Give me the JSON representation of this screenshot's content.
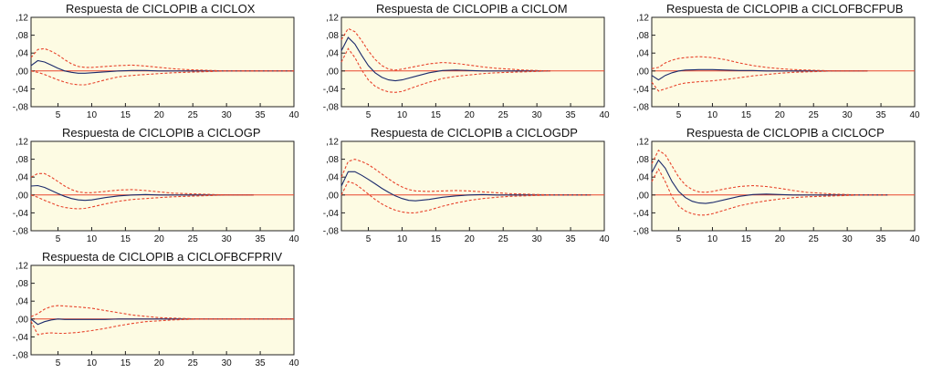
{
  "chart_data": [
    {
      "type": "line",
      "title": "Respuesta de CICLOPIB a CICLOX",
      "annotation": "1",
      "xlim": [
        1,
        40
      ],
      "ylim": [
        -0.08,
        0.12
      ],
      "xticks": [
        5,
        10,
        15,
        20,
        25,
        30,
        35,
        40
      ],
      "yticks": [
        -0.08,
        -0.04,
        0.0,
        0.04,
        0.08,
        0.12
      ],
      "ytick_labels": [
        "-,08",
        "-,04",
        ",00",
        ",04",
        ",08",
        ",12"
      ],
      "xtick_labels": [
        "5",
        "10",
        "15",
        "20",
        "25",
        "30",
        "35",
        "40"
      ],
      "x": [
        1,
        2,
        3,
        4,
        5,
        6,
        7,
        8,
        9,
        10,
        12,
        14,
        16,
        18,
        20,
        22,
        24,
        26,
        28,
        30,
        33,
        36,
        40
      ],
      "series": [
        {
          "role": "response",
          "values": [
            0.012,
            0.023,
            0.02,
            0.013,
            0.006,
            0.0,
            -0.003,
            -0.005,
            -0.005,
            -0.004,
            -0.002,
            0.0,
            0.001,
            0.001,
            0.0,
            0.0,
            0.0,
            0.0,
            0.0,
            0.0,
            0.0,
            0.0,
            0.0
          ]
        },
        {
          "role": "upper",
          "values": [
            0.03,
            0.048,
            0.05,
            0.044,
            0.036,
            0.025,
            0.016,
            0.01,
            0.008,
            0.008,
            0.01,
            0.012,
            0.013,
            0.011,
            0.008,
            0.005,
            0.003,
            0.002,
            0.001,
            0.0,
            0.0,
            0.0,
            0.0
          ]
        },
        {
          "role": "lower",
          "values": [
            0.0,
            -0.003,
            -0.008,
            -0.014,
            -0.02,
            -0.025,
            -0.029,
            -0.031,
            -0.031,
            -0.028,
            -0.02,
            -0.013,
            -0.01,
            -0.008,
            -0.006,
            -0.004,
            -0.003,
            -0.002,
            -0.001,
            0.0,
            0.0,
            0.0,
            0.0
          ]
        }
      ]
    },
    {
      "type": "line",
      "title": "Respuesta de CICLOPIB a CICLOM",
      "xlim": [
        1,
        40
      ],
      "ylim": [
        -0.08,
        0.12
      ],
      "xticks": [
        5,
        10,
        15,
        20,
        25,
        30,
        35,
        40
      ],
      "yticks": [
        -0.08,
        -0.04,
        0.0,
        0.04,
        0.08,
        0.12
      ],
      "ytick_labels": [
        "-,08",
        "-,04",
        ",00",
        ",04",
        ",08",
        ",12"
      ],
      "xtick_labels": [
        "5",
        "10",
        "15",
        "20",
        "25",
        "30",
        "35",
        "40"
      ],
      "x": [
        1,
        2,
        3,
        4,
        5,
        6,
        7,
        8,
        9,
        10,
        12,
        14,
        16,
        18,
        20,
        22,
        24,
        26,
        28,
        30,
        32
      ],
      "series": [
        {
          "role": "response",
          "values": [
            0.045,
            0.075,
            0.06,
            0.035,
            0.012,
            -0.004,
            -0.014,
            -0.02,
            -0.022,
            -0.02,
            -0.012,
            -0.004,
            0.001,
            0.002,
            0.001,
            0.0,
            0.0,
            0.0,
            0.0,
            0.0,
            0.0
          ]
        },
        {
          "role": "upper",
          "values": [
            0.07,
            0.095,
            0.088,
            0.068,
            0.045,
            0.026,
            0.012,
            0.004,
            0.002,
            0.004,
            0.01,
            0.016,
            0.019,
            0.017,
            0.013,
            0.009,
            0.006,
            0.004,
            0.002,
            0.001,
            0.0
          ]
        },
        {
          "role": "lower",
          "values": [
            0.02,
            0.05,
            0.03,
            0.002,
            -0.02,
            -0.034,
            -0.042,
            -0.047,
            -0.048,
            -0.046,
            -0.035,
            -0.025,
            -0.017,
            -0.012,
            -0.009,
            -0.006,
            -0.004,
            -0.003,
            -0.002,
            -0.001,
            0.0
          ]
        }
      ]
    },
    {
      "type": "line",
      "title": "Respuesta de CICLOPIB a CICLOFBCFPUB",
      "xlim": [
        1,
        40
      ],
      "ylim": [
        -0.08,
        0.12
      ],
      "xticks": [
        5,
        10,
        15,
        20,
        25,
        30,
        35,
        40
      ],
      "yticks": [
        -0.08,
        -0.04,
        0.0,
        0.04,
        0.08,
        0.12
      ],
      "ytick_labels": [
        "-,08",
        "-,04",
        ",00",
        ",04",
        ",08",
        ",12"
      ],
      "xtick_labels": [
        "5",
        "10",
        "15",
        "20",
        "25",
        "30",
        "35",
        "40"
      ],
      "x": [
        1,
        2,
        3,
        4,
        5,
        6,
        8,
        10,
        12,
        14,
        16,
        18,
        20,
        22,
        24,
        26,
        28,
        30,
        33
      ],
      "series": [
        {
          "role": "response",
          "values": [
            -0.01,
            -0.02,
            -0.01,
            -0.004,
            0.0,
            0.002,
            0.003,
            0.003,
            0.002,
            0.001,
            0.001,
            0.0,
            0.0,
            0.0,
            0.0,
            0.0,
            0.0,
            0.0,
            0.0
          ]
        },
        {
          "role": "upper",
          "values": [
            0.005,
            0.008,
            0.018,
            0.024,
            0.028,
            0.03,
            0.032,
            0.03,
            0.025,
            0.018,
            0.012,
            0.008,
            0.005,
            0.003,
            0.002,
            0.001,
            0.0,
            0.0,
            0.0
          ]
        },
        {
          "role": "lower",
          "values": [
            -0.025,
            -0.045,
            -0.04,
            -0.035,
            -0.03,
            -0.027,
            -0.024,
            -0.022,
            -0.019,
            -0.015,
            -0.011,
            -0.008,
            -0.005,
            -0.003,
            -0.002,
            -0.001,
            0.0,
            0.0,
            0.0
          ]
        }
      ]
    },
    {
      "type": "line",
      "title": "Respuesta de CICLOPIB a CICLOGP",
      "xlim": [
        1,
        40
      ],
      "ylim": [
        -0.08,
        0.12
      ],
      "xticks": [
        5,
        10,
        15,
        20,
        25,
        30,
        35,
        40
      ],
      "yticks": [
        -0.08,
        -0.04,
        0.0,
        0.04,
        0.08,
        0.12
      ],
      "ytick_labels": [
        "-,08",
        "-,04",
        ",00",
        ",04",
        ",08",
        ",12"
      ],
      "xtick_labels": [
        "5",
        "10",
        "15",
        "20",
        "25",
        "30",
        "35",
        "40"
      ],
      "x": [
        1,
        2,
        3,
        4,
        5,
        6,
        7,
        8,
        9,
        10,
        12,
        14,
        16,
        18,
        20,
        22,
        24,
        26,
        28,
        30,
        34
      ],
      "series": [
        {
          "role": "response",
          "values": [
            0.02,
            0.021,
            0.017,
            0.01,
            0.003,
            -0.003,
            -0.008,
            -0.011,
            -0.012,
            -0.011,
            -0.006,
            -0.002,
            0.0,
            0.001,
            0.0,
            0.0,
            0.0,
            0.0,
            0.0,
            0.0,
            0.0
          ]
        },
        {
          "role": "upper",
          "values": [
            0.04,
            0.048,
            0.048,
            0.04,
            0.03,
            0.02,
            0.012,
            0.007,
            0.005,
            0.005,
            0.008,
            0.011,
            0.012,
            0.01,
            0.007,
            0.004,
            0.003,
            0.002,
            0.001,
            0.0,
            0.0
          ]
        },
        {
          "role": "lower",
          "values": [
            0.0,
            -0.005,
            -0.012,
            -0.018,
            -0.024,
            -0.028,
            -0.03,
            -0.031,
            -0.03,
            -0.027,
            -0.02,
            -0.014,
            -0.01,
            -0.008,
            -0.006,
            -0.004,
            -0.003,
            -0.002,
            -0.001,
            0.0,
            0.0
          ]
        }
      ]
    },
    {
      "type": "line",
      "title": "Respuesta de CICLOPIB a CICLOGDP",
      "xlim": [
        1,
        40
      ],
      "ylim": [
        -0.08,
        0.12
      ],
      "xticks": [
        5,
        10,
        15,
        20,
        25,
        30,
        35,
        40
      ],
      "yticks": [
        -0.08,
        -0.04,
        0.0,
        0.04,
        0.08,
        0.12
      ],
      "ytick_labels": [
        "-,08",
        "-,04",
        ",00",
        ",04",
        ",08",
        ",12"
      ],
      "xtick_labels": [
        "5",
        "10",
        "15",
        "20",
        "25",
        "30",
        "35",
        "40"
      ],
      "x": [
        1,
        2,
        3,
        4,
        5,
        6,
        7,
        8,
        9,
        10,
        11,
        12,
        14,
        16,
        18,
        20,
        22,
        24,
        26,
        28,
        30,
        33,
        36,
        38
      ],
      "series": [
        {
          "role": "response",
          "values": [
            0.02,
            0.052,
            0.052,
            0.044,
            0.035,
            0.025,
            0.015,
            0.006,
            -0.002,
            -0.008,
            -0.012,
            -0.013,
            -0.01,
            -0.005,
            -0.002,
            0.0,
            0.001,
            0.0,
            0.0,
            0.0,
            0.0,
            0.0,
            0.0,
            0.0
          ]
        },
        {
          "role": "upper",
          "values": [
            0.04,
            0.075,
            0.08,
            0.075,
            0.068,
            0.058,
            0.047,
            0.036,
            0.026,
            0.018,
            0.012,
            0.009,
            0.008,
            0.009,
            0.01,
            0.009,
            0.007,
            0.005,
            0.003,
            0.002,
            0.001,
            0.0,
            0.0,
            0.0
          ]
        },
        {
          "role": "lower",
          "values": [
            0.0,
            0.03,
            0.025,
            0.014,
            0.002,
            -0.01,
            -0.02,
            -0.028,
            -0.034,
            -0.038,
            -0.04,
            -0.04,
            -0.034,
            -0.025,
            -0.018,
            -0.012,
            -0.008,
            -0.005,
            -0.003,
            -0.002,
            -0.001,
            0.0,
            0.0,
            0.0
          ]
        }
      ]
    },
    {
      "type": "line",
      "title": "Respuesta de CICLOPIB a CICLOCP",
      "xlim": [
        1,
        40
      ],
      "ylim": [
        -0.08,
        0.12
      ],
      "xticks": [
        5,
        10,
        15,
        20,
        25,
        30,
        35,
        40
      ],
      "yticks": [
        -0.08,
        -0.04,
        0.0,
        0.04,
        0.08,
        0.12
      ],
      "ytick_labels": [
        "-,08",
        "-,04",
        ",00",
        ",04",
        ",08",
        ",12"
      ],
      "xtick_labels": [
        "5",
        "10",
        "15",
        "20",
        "25",
        "30",
        "35",
        "40"
      ],
      "x": [
        1,
        2,
        3,
        4,
        5,
        6,
        7,
        8,
        9,
        10,
        12,
        14,
        16,
        18,
        20,
        22,
        24,
        26,
        28,
        30,
        32,
        36
      ],
      "series": [
        {
          "role": "response",
          "values": [
            0.05,
            0.078,
            0.06,
            0.03,
            0.008,
            -0.006,
            -0.014,
            -0.018,
            -0.019,
            -0.017,
            -0.01,
            -0.003,
            0.001,
            0.002,
            0.001,
            0.0,
            0.0,
            0.0,
            0.0,
            0.0,
            0.0,
            0.0
          ]
        },
        {
          "role": "upper",
          "values": [
            0.07,
            0.1,
            0.09,
            0.065,
            0.04,
            0.022,
            0.012,
            0.007,
            0.006,
            0.008,
            0.014,
            0.019,
            0.021,
            0.019,
            0.015,
            0.01,
            0.006,
            0.004,
            0.002,
            0.001,
            0.0,
            0.0
          ]
        },
        {
          "role": "lower",
          "values": [
            0.03,
            0.058,
            0.03,
            -0.004,
            -0.025,
            -0.036,
            -0.042,
            -0.045,
            -0.045,
            -0.042,
            -0.033,
            -0.024,
            -0.018,
            -0.013,
            -0.009,
            -0.006,
            -0.004,
            -0.003,
            -0.002,
            -0.001,
            0.0,
            0.0
          ]
        }
      ]
    },
    {
      "type": "line",
      "title": "Respuesta de CICLOPIB a CICLOFBCFPRIV",
      "xlim": [
        1,
        40
      ],
      "ylim": [
        -0.08,
        0.12
      ],
      "xticks": [
        5,
        10,
        15,
        20,
        25,
        30,
        35,
        40
      ],
      "yticks": [
        -0.08,
        -0.04,
        0.0,
        0.04,
        0.08,
        0.12
      ],
      "ytick_labels": [
        "-,08",
        "-,04",
        ",00",
        ",04",
        ",08",
        ",12"
      ],
      "xtick_labels": [
        "5",
        "10",
        "15",
        "20",
        "25",
        "30",
        "35",
        "40"
      ],
      "x": [
        1,
        2,
        3,
        4,
        5,
        6,
        8,
        10,
        12,
        14,
        16,
        18,
        20,
        22,
        24,
        26,
        28,
        30,
        35,
        40
      ],
      "series": [
        {
          "role": "response",
          "values": [
            0.0,
            -0.012,
            -0.006,
            -0.002,
            0.0,
            -0.001,
            -0.001,
            -0.001,
            -0.001,
            0.0,
            0.0,
            0.0,
            0.0,
            0.0,
            0.0,
            0.0,
            0.0,
            0.0,
            0.0,
            0.0
          ]
        },
        {
          "role": "upper",
          "values": [
            0.005,
            0.012,
            0.022,
            0.028,
            0.03,
            0.029,
            0.027,
            0.024,
            0.019,
            0.014,
            0.009,
            0.006,
            0.003,
            0.002,
            0.001,
            0.0,
            0.0,
            0.0,
            0.0,
            0.0
          ]
        },
        {
          "role": "lower",
          "values": [
            -0.005,
            -0.035,
            -0.032,
            -0.031,
            -0.032,
            -0.032,
            -0.03,
            -0.026,
            -0.021,
            -0.015,
            -0.01,
            -0.006,
            -0.004,
            -0.002,
            -0.001,
            0.0,
            0.0,
            0.0,
            0.0,
            0.0
          ]
        }
      ]
    }
  ],
  "style": {
    "plot_bg": "#fdfbe3",
    "response_color": "#1b2a6b",
    "band_color": "#e8442c",
    "zero_line_color": "#e8442c",
    "frame_color": "#222222"
  }
}
